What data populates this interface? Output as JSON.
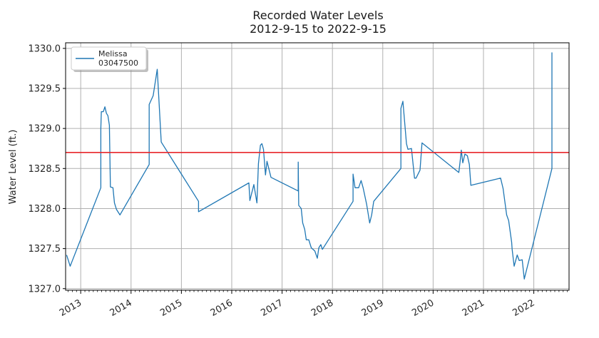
{
  "chart_data": {
    "type": "line",
    "title": "Recorded Water Levels",
    "subtitle": "2012-9-15 to 2022-9-15",
    "xlabel": "",
    "ylabel": "Water Level (ft.)",
    "xlim": [
      2012.7,
      2022.7
    ],
    "ylim": [
      1326.98,
      1330.07
    ],
    "grid": true,
    "legend_position": "top-left",
    "x_ticks": [
      2013,
      2014,
      2015,
      2016,
      2017,
      2018,
      2019,
      2020,
      2021,
      2022
    ],
    "x_tick_labels": [
      "2013",
      "2014",
      "2015",
      "2016",
      "2017",
      "2018",
      "2019",
      "2020",
      "2021",
      "2022"
    ],
    "y_ticks": [
      1327.0,
      1327.5,
      1328.0,
      1328.5,
      1329.0,
      1329.5,
      1330.0
    ],
    "y_tick_labels": [
      "1327.0",
      "1327.5",
      "1328.0",
      "1328.5",
      "1329.0",
      "1329.5",
      "1330.0"
    ],
    "series": [
      {
        "name": "Melissa\n03047500",
        "legend_lines": [
          "Melissa",
          "03047500"
        ],
        "color": "#1f77b4",
        "x": [
          2012.72,
          2012.79,
          2013.4,
          2013.4,
          2013.41,
          2013.45,
          2013.48,
          2013.51,
          2013.54,
          2013.57,
          2013.59,
          2013.64,
          2013.67,
          2013.71,
          2013.78,
          2014.36,
          2014.36,
          2014.44,
          2014.52,
          2014.6,
          2015.34,
          2015.34,
          2016.34,
          2016.36,
          2016.44,
          2016.5,
          2016.53,
          2016.57,
          2016.6,
          2016.63,
          2016.67,
          2016.7,
          2016.78,
          2017.32,
          2017.32,
          2017.33,
          2017.38,
          2017.41,
          2017.45,
          2017.48,
          2017.53,
          2017.58,
          2017.65,
          2017.7,
          2017.73,
          2017.77,
          2017.8,
          2018.41,
          2018.41,
          2018.45,
          2018.52,
          2018.57,
          2018.61,
          2018.68,
          2018.74,
          2018.78,
          2018.82,
          2019.36,
          2019.36,
          2019.4,
          2019.47,
          2019.5,
          2019.57,
          2019.63,
          2019.66,
          2019.74,
          2019.78,
          2020.51,
          2020.54,
          2020.56,
          2020.59,
          2020.63,
          2020.68,
          2020.72,
          2020.75,
          2021.34,
          2021.39,
          2021.46,
          2021.5,
          2021.56,
          2021.57,
          2021.61,
          2021.67,
          2021.71,
          2021.77,
          2021.81,
          2022.36,
          2022.36
        ],
        "values": [
          1327.42,
          1327.28,
          1328.26,
          1329.0,
          1329.21,
          1329.21,
          1329.27,
          1329.19,
          1329.16,
          1329.04,
          1328.27,
          1328.26,
          1328.07,
          1327.99,
          1327.92,
          1328.55,
          1329.3,
          1329.41,
          1329.74,
          1328.83,
          1328.09,
          1327.96,
          1328.32,
          1328.1,
          1328.3,
          1328.07,
          1328.56,
          1328.79,
          1328.81,
          1328.74,
          1328.42,
          1328.59,
          1328.39,
          1328.22,
          1328.58,
          1328.04,
          1328.0,
          1327.82,
          1327.74,
          1327.61,
          1327.61,
          1327.51,
          1327.47,
          1327.38,
          1327.51,
          1327.55,
          1327.49,
          1328.09,
          1328.43,
          1328.26,
          1328.26,
          1328.35,
          1328.26,
          1328.05,
          1327.82,
          1327.92,
          1328.09,
          1328.5,
          1329.25,
          1329.34,
          1328.81,
          1328.74,
          1328.75,
          1328.38,
          1328.38,
          1328.48,
          1328.82,
          1328.45,
          1328.61,
          1328.73,
          1328.57,
          1328.68,
          1328.66,
          1328.55,
          1328.29,
          1328.38,
          1328.25,
          1327.92,
          1327.85,
          1327.58,
          1327.49,
          1327.28,
          1327.42,
          1327.35,
          1327.36,
          1327.12,
          1328.5,
          1329.95
        ]
      }
    ],
    "reference_lines": [
      {
        "orientation": "horizontal",
        "value": 1328.7,
        "color": "#e8262a"
      }
    ]
  }
}
